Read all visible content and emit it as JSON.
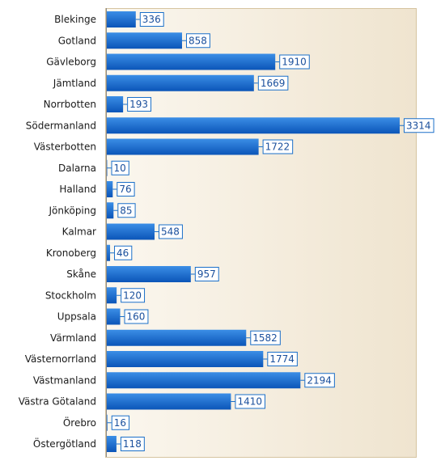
{
  "chart_data": {
    "type": "bar",
    "orientation": "horizontal",
    "categories": [
      "Blekinge",
      "Gotland",
      "Gävleborg",
      "Jämtland",
      "Norrbotten",
      "Södermanland",
      "Västerbotten",
      "Dalarna",
      "Halland",
      "Jönköping",
      "Kalmar",
      "Kronoberg",
      "Skåne",
      "Stockholm",
      "Uppsala",
      "Värmland",
      "Västernorrland",
      "Västmanland",
      "Västra Götaland",
      "Örebro",
      "Östergötland"
    ],
    "values": [
      336,
      858,
      1910,
      1669,
      193,
      3314,
      1722,
      10,
      76,
      85,
      548,
      46,
      957,
      120,
      160,
      1582,
      1774,
      2194,
      1410,
      16,
      118
    ],
    "value_labels": [
      "336",
      "858",
      "1910",
      "1669",
      "193",
      "3314",
      "1722",
      "10",
      "76",
      "85",
      "548",
      "46",
      "957",
      "120",
      "160",
      "1582",
      "1774",
      "2194",
      "1410",
      "16",
      "118"
    ],
    "title": "",
    "xlabel": "",
    "ylabel": "",
    "xlim": [
      0,
      3314
    ],
    "grid": false,
    "legend": "none",
    "colors": {
      "bar_light": "#3b8ee6",
      "bar_dark": "#0b55b8",
      "plot_bg_left": "#fbf7ef",
      "plot_bg_right": "#efe4cf",
      "plot_border": "#d6c4a0",
      "label_border": "#1a6fc9",
      "label_text": "#1a4f9c"
    }
  }
}
